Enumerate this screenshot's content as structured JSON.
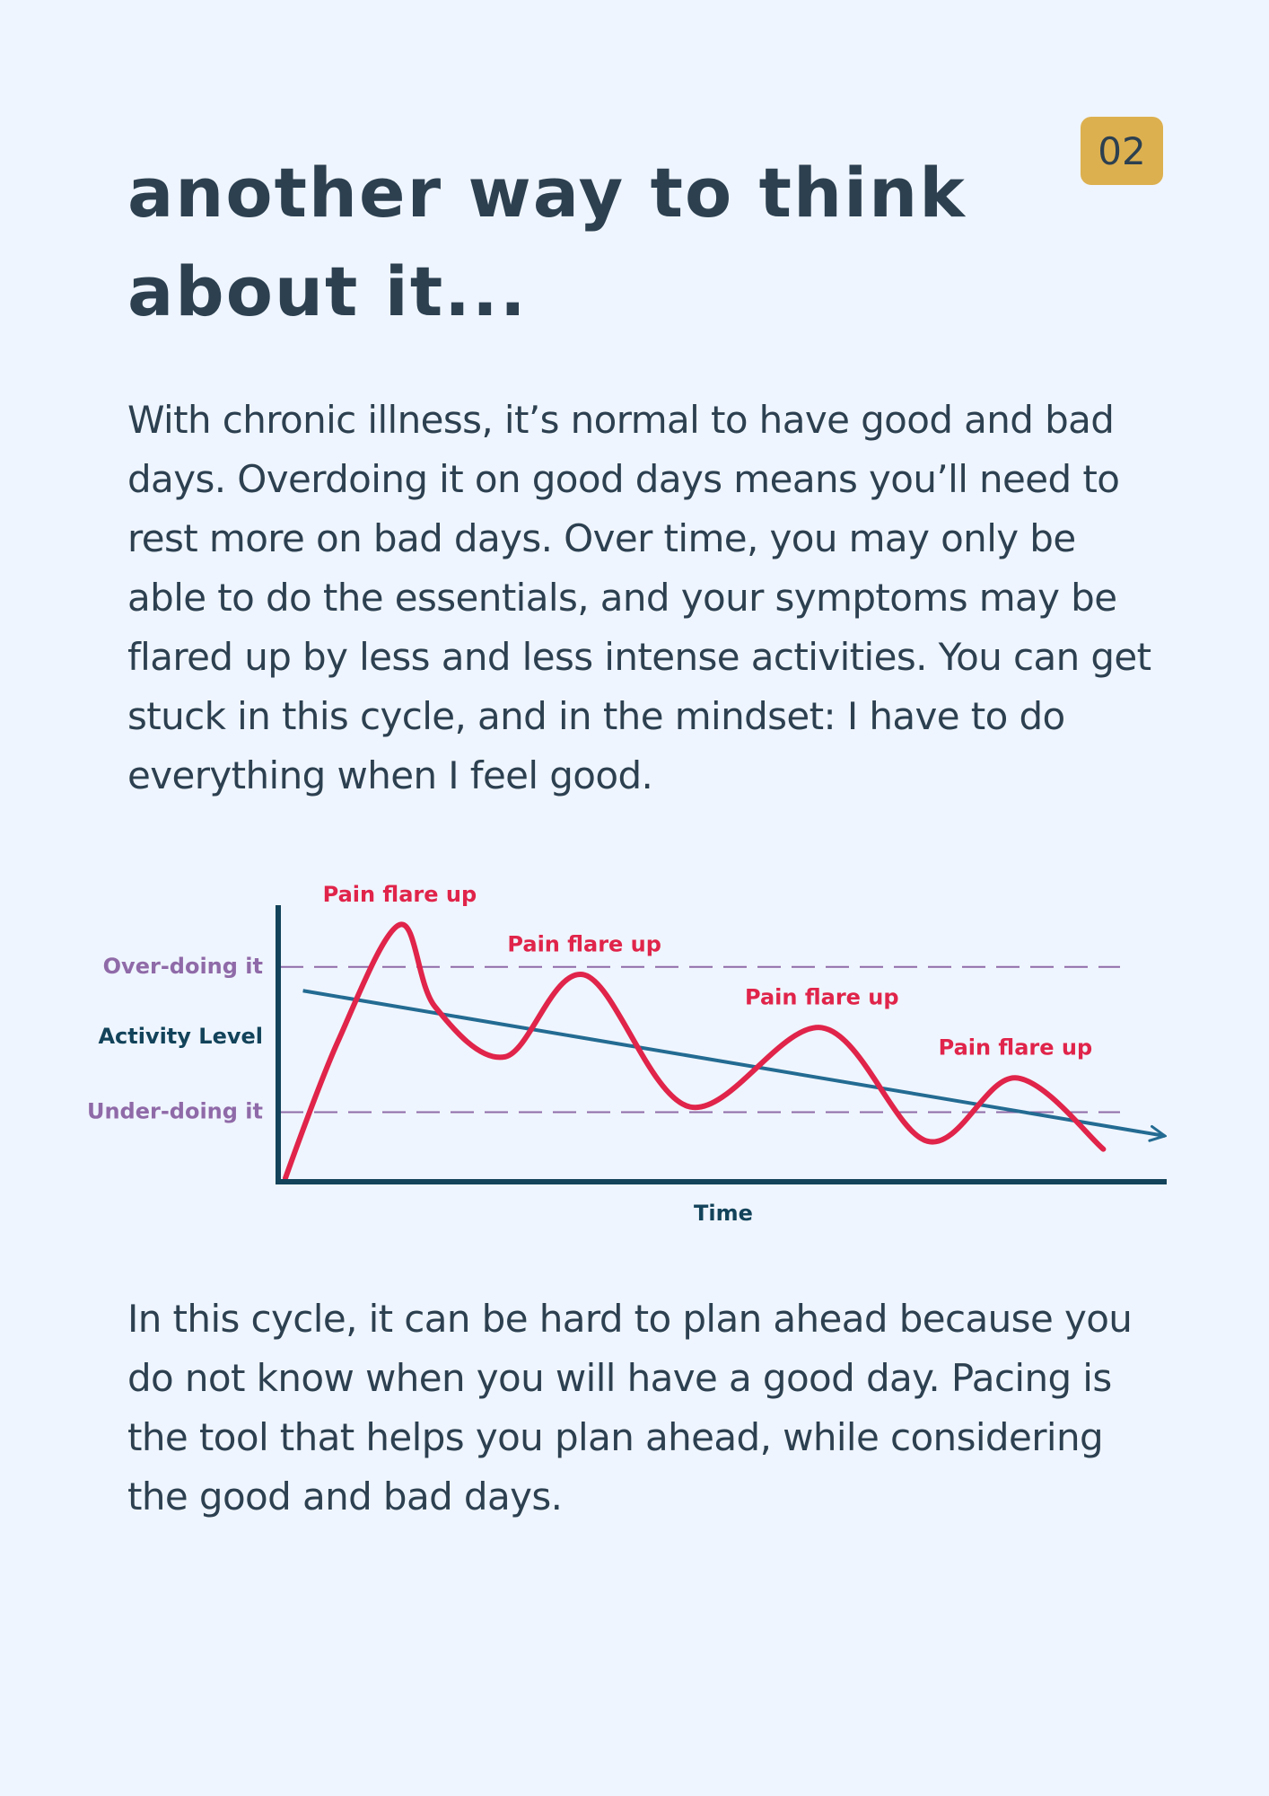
{
  "page": {
    "number": "02",
    "title_line1": "another way to think",
    "title_line2": "about it...",
    "para1": [
      "With chronic illness, it’s normal to have good and bad",
      "days. Overdoing it on good days means you’ll need to",
      "rest more on bad days. Over time, you may only be",
      "able to do the essentials, and your symptoms may be",
      "flared up by less and less intense activities. You can get",
      "stuck in this cycle, and in the mindset: I have to do",
      "everything when I feel good."
    ],
    "para2": [
      "In this cycle, it can be hard to plan ahead because you",
      "do not know when you will have a good day. Pacing is",
      "the tool that helps you plan ahead, while considering",
      "the good and bad days."
    ]
  },
  "colors": {
    "background": "#eff5fe",
    "text": "#2c4050",
    "badge": "#ddb04f",
    "activity_line": "#e0244a",
    "trend_line": "#236b92",
    "threshold": "#8f6aa8",
    "axis": "#12435a"
  },
  "chart_data": {
    "type": "line",
    "xlabel": "Time",
    "ylabel": "Activity Level",
    "thresholds": [
      {
        "label": "Over-doing it",
        "level": 0.8
      },
      {
        "label": "Under-doing it",
        "level": 0.25
      }
    ],
    "series": [],
    "activity": [
      [
        0.0,
        0.0
      ],
      [
        0.06,
        0.52
      ],
      [
        0.13,
        0.96
      ],
      [
        0.17,
        0.65
      ],
      [
        0.25,
        0.46
      ],
      [
        0.34,
        0.77
      ],
      [
        0.46,
        0.27
      ],
      [
        0.61,
        0.57
      ],
      [
        0.73,
        0.14
      ],
      [
        0.83,
        0.38
      ],
      [
        0.93,
        0.11
      ]
    ],
    "trend": [
      [
        0.02,
        0.71
      ],
      [
        1.0,
        0.16
      ]
    ],
    "annotations": [
      {
        "text": "Pain flare up",
        "x": 0.13,
        "y": 0.96
      },
      {
        "text": "Pain flare up",
        "x": 0.34,
        "y": 0.77
      },
      {
        "text": "Pain flare up",
        "x": 0.61,
        "y": 0.57
      },
      {
        "text": "Pain flare up",
        "x": 0.83,
        "y": 0.38
      }
    ],
    "grid": false,
    "legend": "none"
  }
}
